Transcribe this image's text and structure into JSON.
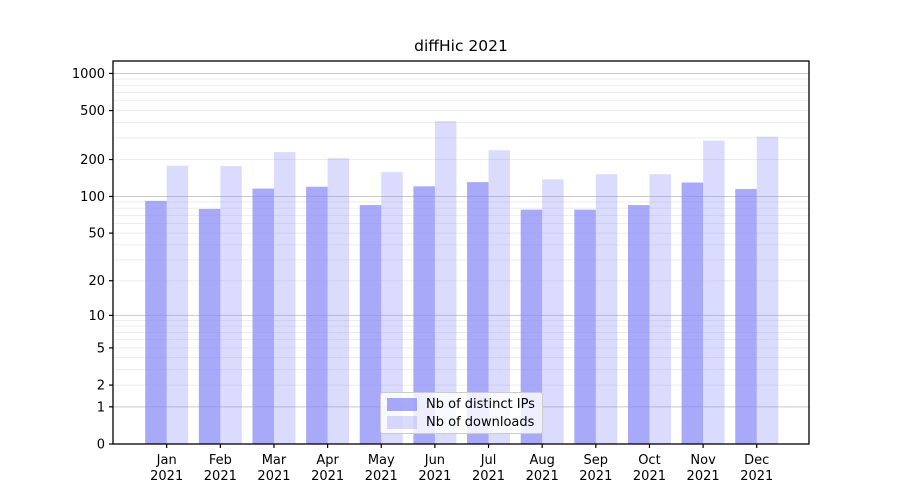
{
  "title": "diffHic 2021",
  "chart_data": {
    "type": "bar",
    "title": "diffHic 2021",
    "categories": [
      "Jan 2021",
      "Feb 2021",
      "Mar 2021",
      "Apr 2021",
      "May 2021",
      "Jun 2021",
      "Jul 2021",
      "Aug 2021",
      "Sep 2021",
      "Oct 2021",
      "Nov 2021",
      "Dec 2021"
    ],
    "months": [
      "Jan",
      "Feb",
      "Mar",
      "Apr",
      "May",
      "Jun",
      "Jul",
      "Aug",
      "Sep",
      "Oct",
      "Nov",
      "Dec"
    ],
    "year": "2021",
    "series": [
      {
        "name": "Nb of distinct IPs",
        "key": "distinct-ips",
        "values": [
          92,
          79,
          116,
          120,
          85,
          121,
          131,
          78,
          78,
          85,
          130,
          115
        ],
        "fill": "rgba(136,136,248,0.72)"
      },
      {
        "name": "Nb of downloads",
        "key": "downloads",
        "values": [
          178,
          177,
          230,
          205,
          158,
          410,
          238,
          138,
          152,
          152,
          285,
          307
        ],
        "fill": "rgba(136,136,248,0.30)"
      }
    ],
    "yscale": "log1p",
    "ylabel": "",
    "xlabel": "",
    "ylim": [
      0,
      1260
    ],
    "y_ticks": [
      0,
      1,
      2,
      5,
      10,
      20,
      50,
      100,
      200,
      500,
      1000
    ],
    "grid": true,
    "grid_major_values": [
      1,
      10,
      100,
      1000
    ],
    "grid_minor_values": [
      2,
      3,
      4,
      5,
      6,
      7,
      8,
      9,
      20,
      30,
      40,
      50,
      60,
      70,
      80,
      90,
      200,
      300,
      400,
      500,
      600,
      700,
      800,
      900
    ],
    "legend_position": "lower center",
    "colors": {
      "axis": "#000000",
      "grid_major": "#c9c9c9",
      "grid_minor": "#ededed",
      "text": "#000000",
      "bar_base": "#8888f8"
    }
  }
}
